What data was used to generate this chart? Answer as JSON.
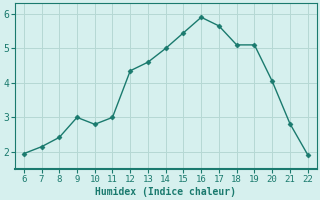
{
  "x": [
    6,
    7,
    8,
    9,
    10,
    11,
    12,
    13,
    14,
    15,
    16,
    17,
    18,
    19,
    20,
    21,
    22
  ],
  "y": [
    1.95,
    2.15,
    2.42,
    3.0,
    2.8,
    3.0,
    4.35,
    4.6,
    5.0,
    5.45,
    5.9,
    5.65,
    5.1,
    5.1,
    4.05,
    2.82,
    1.92
  ],
  "xlabel": "Humidex (Indice chaleur)",
  "ylim": [
    1.5,
    6.3
  ],
  "xlim": [
    5.5,
    22.5
  ],
  "yticks": [
    2,
    3,
    4,
    5,
    6
  ],
  "xticks": [
    6,
    7,
    8,
    9,
    10,
    11,
    12,
    13,
    14,
    15,
    16,
    17,
    18,
    19,
    20,
    21,
    22
  ],
  "line_color": "#1a7a6e",
  "marker": "D",
  "marker_size": 2.5,
  "bg_color": "#d6f0ee",
  "grid_color": "#b5d8d4"
}
